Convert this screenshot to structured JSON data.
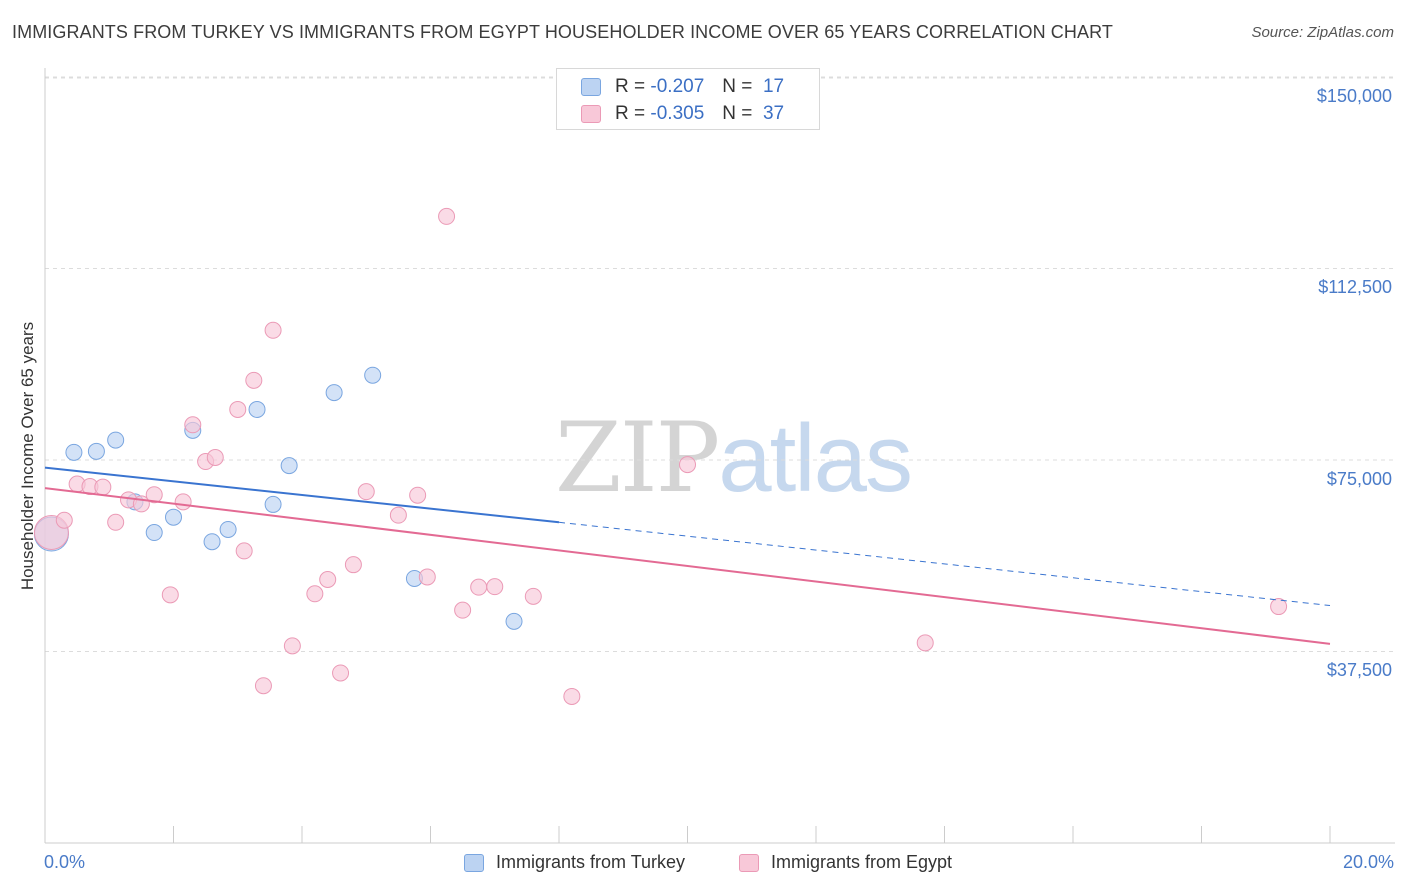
{
  "chart_data": {
    "type": "scatter",
    "title": "IMMIGRANTS FROM TURKEY VS IMMIGRANTS FROM EGYPT HOUSEHOLDER INCOME OVER 65 YEARS CORRELATION CHART",
    "source": "Source: ZipAtlas.com",
    "ylabel": "Householder Income Over 65 years",
    "xlim": [
      0,
      20
    ],
    "ylim": [
      0,
      155000
    ],
    "x_tick_labels": [
      "0.0%",
      "20.0%"
    ],
    "y_ticks": [
      {
        "value": 150000,
        "label": "$150,000"
      },
      {
        "value": 112500,
        "label": "$112,500"
      },
      {
        "value": 75000,
        "label": "$75,000"
      },
      {
        "value": 37500,
        "label": "$37,500"
      }
    ],
    "grid": true,
    "legend": {
      "position": "top-center",
      "entries": [
        {
          "r_label": "R =",
          "r_value": "-0.207",
          "n_label": "N =",
          "n_value": "17"
        },
        {
          "r_label": "R =",
          "r_value": "-0.305",
          "n_label": "N =",
          "n_value": "37"
        }
      ]
    },
    "watermark": {
      "zip": "ZIP",
      "atlas": "atlas"
    },
    "series": [
      {
        "name": "Immigrants from Turkey",
        "color": "#7aa6e0",
        "fill": "#bcd3f2",
        "line_color": "#3a74d0",
        "trend": {
          "x0": 0,
          "y0": 73500,
          "x1": 8.0,
          "y1": 62800,
          "x_dash_end": 20.0,
          "y_dash_end": 46500
        },
        "points": [
          {
            "x": 0.1,
            "y": 60500,
            "big": true
          },
          {
            "x": 0.45,
            "y": 76500
          },
          {
            "x": 0.8,
            "y": 76700
          },
          {
            "x": 1.1,
            "y": 78900
          },
          {
            "x": 1.4,
            "y": 66800
          },
          {
            "x": 1.7,
            "y": 60800
          },
          {
            "x": 2.0,
            "y": 63800
          },
          {
            "x": 2.3,
            "y": 80800
          },
          {
            "x": 2.6,
            "y": 59000
          },
          {
            "x": 2.85,
            "y": 61400
          },
          {
            "x": 3.3,
            "y": 84900
          },
          {
            "x": 3.8,
            "y": 73900
          },
          {
            "x": 3.55,
            "y": 66300
          },
          {
            "x": 4.5,
            "y": 88200
          },
          {
            "x": 5.1,
            "y": 91600
          },
          {
            "x": 5.75,
            "y": 51800
          },
          {
            "x": 7.3,
            "y": 43400
          }
        ]
      },
      {
        "name": "Immigrants from Egypt",
        "color": "#eb9ab6",
        "fill": "#f8c8d8",
        "line_color": "#e36a93",
        "trend": {
          "x0": 0,
          "y0": 69500,
          "x1": 20.0,
          "y1": 39000
        },
        "points": [
          {
            "x": 0.1,
            "y": 60800,
            "big": true
          },
          {
            "x": 0.3,
            "y": 63200
          },
          {
            "x": 0.5,
            "y": 70300
          },
          {
            "x": 0.7,
            "y": 69800
          },
          {
            "x": 0.9,
            "y": 69700
          },
          {
            "x": 1.1,
            "y": 62800
          },
          {
            "x": 1.3,
            "y": 67200
          },
          {
            "x": 1.5,
            "y": 66400
          },
          {
            "x": 1.7,
            "y": 68200
          },
          {
            "x": 1.95,
            "y": 48600
          },
          {
            "x": 2.15,
            "y": 66800
          },
          {
            "x": 2.3,
            "y": 81900
          },
          {
            "x": 2.5,
            "y": 74700
          },
          {
            "x": 2.65,
            "y": 75500
          },
          {
            "x": 3.0,
            "y": 84900
          },
          {
            "x": 3.1,
            "y": 57200
          },
          {
            "x": 3.25,
            "y": 90600
          },
          {
            "x": 3.4,
            "y": 30800
          },
          {
            "x": 3.55,
            "y": 100400
          },
          {
            "x": 3.85,
            "y": 38600
          },
          {
            "x": 4.2,
            "y": 48800
          },
          {
            "x": 4.4,
            "y": 51600
          },
          {
            "x": 4.6,
            "y": 33300
          },
          {
            "x": 4.8,
            "y": 54500
          },
          {
            "x": 5.0,
            "y": 68800
          },
          {
            "x": 5.5,
            "y": 64200
          },
          {
            "x": 5.8,
            "y": 68100
          },
          {
            "x": 5.95,
            "y": 52100
          },
          {
            "x": 6.25,
            "y": 122700
          },
          {
            "x": 6.5,
            "y": 45600
          },
          {
            "x": 6.75,
            "y": 50100
          },
          {
            "x": 7.0,
            "y": 50200
          },
          {
            "x": 7.6,
            "y": 48300
          },
          {
            "x": 8.2,
            "y": 28700
          },
          {
            "x": 10.0,
            "y": 74100
          },
          {
            "x": 13.7,
            "y": 39200
          },
          {
            "x": 19.2,
            "y": 46300
          }
        ]
      }
    ]
  }
}
